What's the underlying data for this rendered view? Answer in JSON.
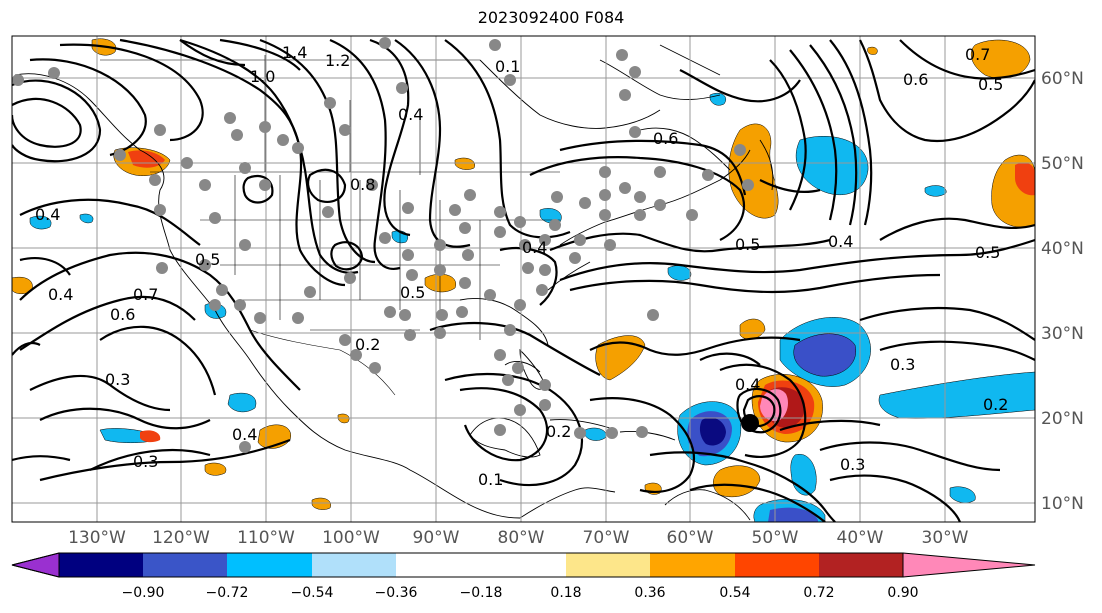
{
  "title": "2023092400 F084",
  "map": {
    "lon_ticks": [
      "130°W",
      "120°W",
      "110°W",
      "100°W",
      "90°W",
      "80°W",
      "70°W",
      "60°W",
      "50°W",
      "40°W",
      "30°W"
    ],
    "lat_ticks": [
      "60°N",
      "50°N",
      "40°N",
      "30°N",
      "20°N",
      "10°N"
    ],
    "contour_labels": [
      "1.4",
      "1.2",
      "1.0",
      "0.1",
      "0.4",
      "0.6",
      "0.8",
      "0.4",
      "0.5",
      "0.5",
      "0.4",
      "0.5",
      "0.4",
      "0.7",
      "0.6",
      "0.4",
      "0.3",
      "0.3",
      "0.4",
      "0.2",
      "0.5",
      "0.2",
      "0.4",
      "0.3",
      "0.3",
      "0.2",
      "0.7",
      "0.6",
      "0.5",
      "0.1"
    ],
    "colors": {
      "strong_negative": "#0a0a80",
      "negative": "#3a50c8",
      "weak_negative": "#10b8f0",
      "weak_positive": "#f5a000",
      "positive": "#f04010",
      "strong_positive": "#b01818",
      "very_strong_positive": "#ff88b8",
      "station_dots": "#888888",
      "storm_center": "#000000"
    }
  },
  "colorbar": {
    "tick_labels": [
      "−0.90",
      "−0.72",
      "−0.54",
      "−0.36",
      "−0.18",
      "0.18",
      "0.36",
      "0.54",
      "0.72",
      "0.90"
    ],
    "colors": [
      "#9a30d0",
      "#000080",
      "#3a55c8",
      "#00bfff",
      "#b0e0fa",
      "#ffffff",
      "#fde68a",
      "#ffa500",
      "#ff4500",
      "#b22222",
      "#ff88b8"
    ]
  }
}
